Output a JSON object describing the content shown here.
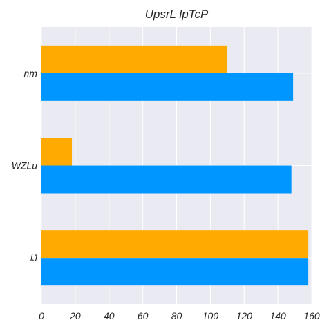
{
  "chart_data": {
    "type": "bar",
    "orientation": "horizontal",
    "title": "UpsrL lpTcP",
    "xlabel": "",
    "ylabel": "",
    "categories": [
      "nm",
      "WZLu",
      "lJ"
    ],
    "series": [
      {
        "values": [
          110,
          18,
          158
        ],
        "color": "#FFAA00"
      },
      {
        "values": [
          149,
          148,
          158
        ],
        "color": "#0096FF"
      }
    ],
    "xlim": [
      0,
      160
    ],
    "xticks": [
      0,
      20,
      40,
      60,
      80,
      100,
      120,
      140,
      160
    ],
    "grid": true,
    "background": "#EAEAF2"
  }
}
